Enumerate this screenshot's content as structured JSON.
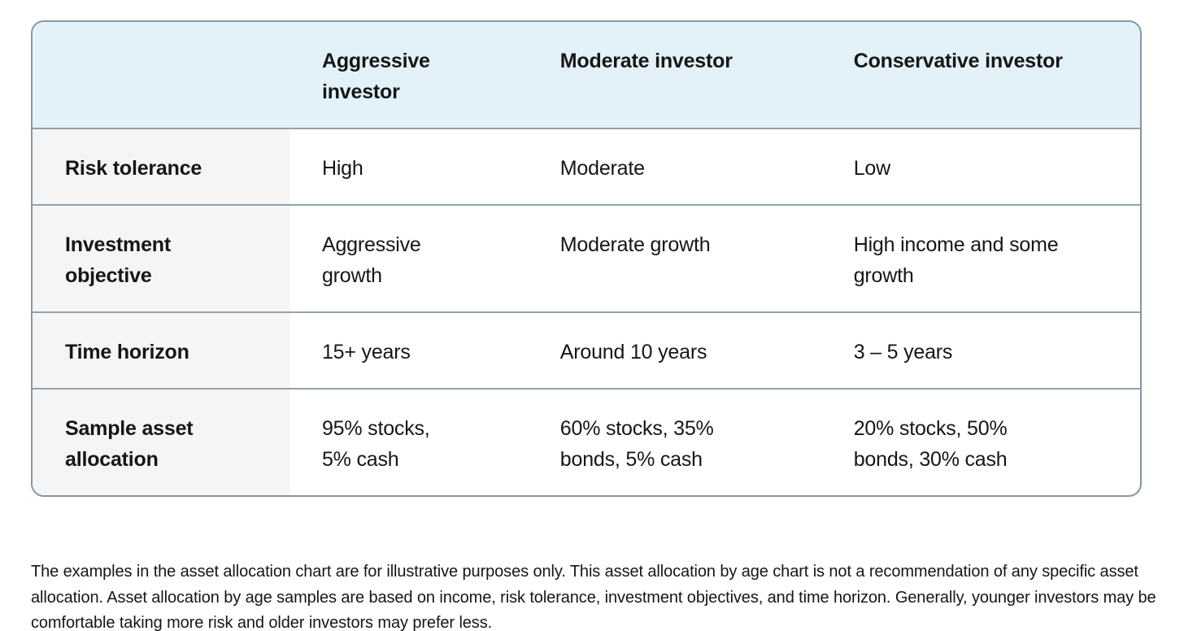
{
  "table": {
    "columns": [
      "",
      "Aggressive\ninvestor",
      "Moderate investor",
      "Conservative investor"
    ],
    "rows": [
      {
        "label": "Risk tolerance",
        "values": [
          "High",
          "Moderate",
          "Low"
        ]
      },
      {
        "label": "Investment\nobjective",
        "values": [
          "Aggressive\ngrowth",
          "Moderate growth",
          "High income and some\ngrowth"
        ]
      },
      {
        "label": "Time horizon",
        "values": [
          "15+ years",
          "Around 10 years",
          "3 – 5 years"
        ]
      },
      {
        "label": "Sample asset\nallocation",
        "values": [
          "95% stocks,\n5% cash",
          "60% stocks, 35%\nbonds, 5% cash",
          "20% stocks, 50%\nbonds, 30% cash"
        ]
      }
    ]
  },
  "footnote": "The examples in the asset allocation chart are for illustrative purposes only. This asset allocation by age chart is not a recommendation of any specific asset allocation. Asset allocation by age samples are based on income, risk tolerance, investment objectives, and time horizon. Generally, younger investors may be comfortable taking more risk and older investors may prefer less.",
  "colors": {
    "header_bg": "#e3f2f9",
    "label_bg": "#f5f5f5",
    "row_border": "#93a1ab",
    "outer_border": "#8696a4",
    "text": "#161616"
  }
}
